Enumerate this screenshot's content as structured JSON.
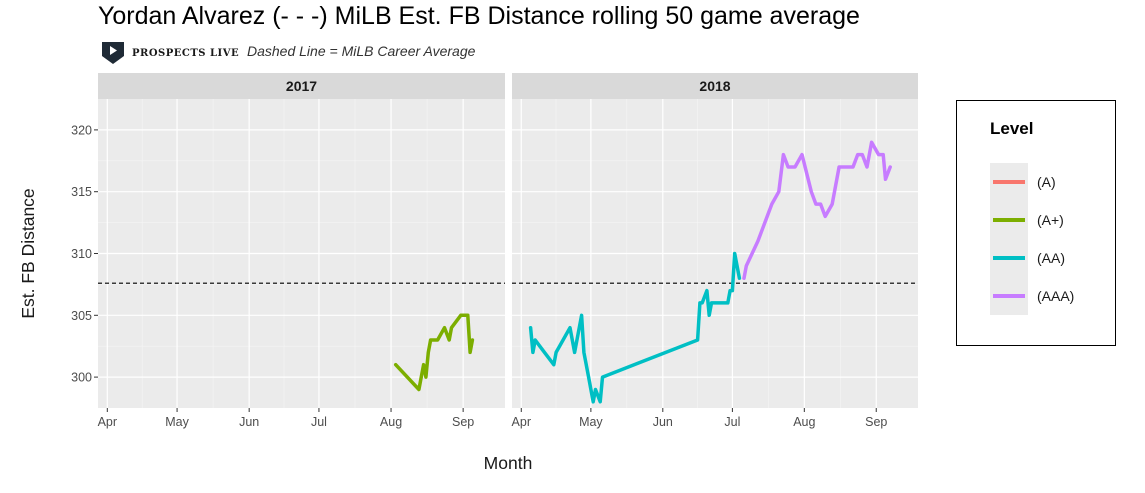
{
  "title": "Yordan Alvarez (- - -) MiLB Est. FB Distance rolling 50 game average",
  "brand": {
    "name": "PROSPECTS LIVE",
    "logo_icon": "play-shield-icon"
  },
  "caption": "Dashed Line = MiLB Career Average",
  "legend": {
    "title": "Level",
    "items": [
      {
        "label": "(A)",
        "color": "#F8766D"
      },
      {
        "label": "(A+)",
        "color": "#7CAE00"
      },
      {
        "label": "(AA)",
        "color": "#00BFC4"
      },
      {
        "label": "(AAA)",
        "color": "#C77CFF"
      }
    ]
  },
  "chart_data": {
    "type": "line",
    "xlabel": "Month",
    "ylabel": "Est. FB Distance",
    "ylim": [
      297.5,
      322.5
    ],
    "yticks": [
      300,
      305,
      310,
      315,
      320
    ],
    "reference_line": {
      "y": 307.6,
      "style": "dashed"
    },
    "grid": true,
    "legend_position": "right",
    "facets": [
      {
        "label": "2017",
        "xlim": [
          "2017-03-28",
          "2017-09-19"
        ],
        "xticks": [
          {
            "label": "Apr",
            "date": "2017-04-01"
          },
          {
            "label": "May",
            "date": "2017-05-01"
          },
          {
            "label": "Jun",
            "date": "2017-06-01"
          },
          {
            "label": "Jul",
            "date": "2017-07-01"
          },
          {
            "label": "Aug",
            "date": "2017-08-01"
          },
          {
            "label": "Sep",
            "date": "2017-09-01"
          }
        ],
        "series": [
          {
            "name": "(A+)",
            "color": "#7CAE00",
            "points": [
              [
                "2017-08-03",
                301
              ],
              [
                "2017-08-13",
                299
              ],
              [
                "2017-08-15",
                301
              ],
              [
                "2017-08-16",
                300
              ],
              [
                "2017-08-17",
                302
              ],
              [
                "2017-08-18",
                303
              ],
              [
                "2017-08-21",
                303
              ],
              [
                "2017-08-24",
                304
              ],
              [
                "2017-08-26",
                303
              ],
              [
                "2017-08-27",
                304
              ],
              [
                "2017-08-31",
                305
              ],
              [
                "2017-09-03",
                305
              ],
              [
                "2017-09-04",
                302
              ],
              [
                "2017-09-05",
                303
              ]
            ]
          }
        ]
      },
      {
        "label": "2018",
        "xlim": [
          "2018-03-28",
          "2018-09-19"
        ],
        "xticks": [
          {
            "label": "Apr",
            "date": "2018-04-01"
          },
          {
            "label": "May",
            "date": "2018-05-01"
          },
          {
            "label": "Jun",
            "date": "2018-06-01"
          },
          {
            "label": "Jul",
            "date": "2018-07-01"
          },
          {
            "label": "Aug",
            "date": "2018-08-01"
          },
          {
            "label": "Sep",
            "date": "2018-09-01"
          }
        ],
        "series": [
          {
            "name": "(AA)",
            "color": "#00BFC4",
            "points": [
              [
                "2018-04-05",
                304
              ],
              [
                "2018-04-06",
                302
              ],
              [
                "2018-04-07",
                303
              ],
              [
                "2018-04-09",
                302.5
              ],
              [
                "2018-04-11",
                302
              ],
              [
                "2018-04-15",
                301
              ],
              [
                "2018-04-16",
                302
              ],
              [
                "2018-04-22",
                304
              ],
              [
                "2018-04-24",
                302
              ],
              [
                "2018-04-27",
                305
              ],
              [
                "2018-04-28",
                302
              ],
              [
                "2018-04-30",
                300
              ],
              [
                "2018-05-01",
                299
              ],
              [
                "2018-05-02",
                298
              ],
              [
                "2018-05-03",
                299
              ],
              [
                "2018-05-05",
                298
              ],
              [
                "2018-05-06",
                300
              ],
              [
                "2018-06-16",
                303
              ],
              [
                "2018-06-17",
                306
              ],
              [
                "2018-06-18",
                306
              ],
              [
                "2018-06-20",
                307
              ],
              [
                "2018-06-21",
                305
              ],
              [
                "2018-06-22",
                306
              ],
              [
                "2018-06-29",
                306
              ],
              [
                "2018-06-30",
                307
              ],
              [
                "2018-07-01",
                307
              ],
              [
                "2018-07-02",
                310
              ],
              [
                "2018-07-04",
                308
              ]
            ]
          },
          {
            "name": "(AAA)",
            "color": "#C77CFF",
            "points": [
              [
                "2018-07-06",
                308
              ],
              [
                "2018-07-07",
                309
              ],
              [
                "2018-07-12",
                311
              ],
              [
                "2018-07-16",
                313
              ],
              [
                "2018-07-18",
                314
              ],
              [
                "2018-07-21",
                315
              ],
              [
                "2018-07-23",
                318
              ],
              [
                "2018-07-25",
                317
              ],
              [
                "2018-07-28",
                317
              ],
              [
                "2018-07-31",
                318
              ],
              [
                "2018-08-04",
                315
              ],
              [
                "2018-08-06",
                314
              ],
              [
                "2018-08-08",
                314
              ],
              [
                "2018-08-10",
                313
              ],
              [
                "2018-08-13",
                314
              ],
              [
                "2018-08-16",
                317
              ],
              [
                "2018-08-20",
                317
              ],
              [
                "2018-08-22",
                317
              ],
              [
                "2018-08-24",
                318
              ],
              [
                "2018-08-26",
                318
              ],
              [
                "2018-08-28",
                317
              ],
              [
                "2018-08-30",
                319
              ],
              [
                "2018-09-02",
                318
              ],
              [
                "2018-09-04",
                318
              ],
              [
                "2018-09-05",
                316
              ],
              [
                "2018-09-07",
                317
              ]
            ]
          }
        ]
      }
    ]
  }
}
